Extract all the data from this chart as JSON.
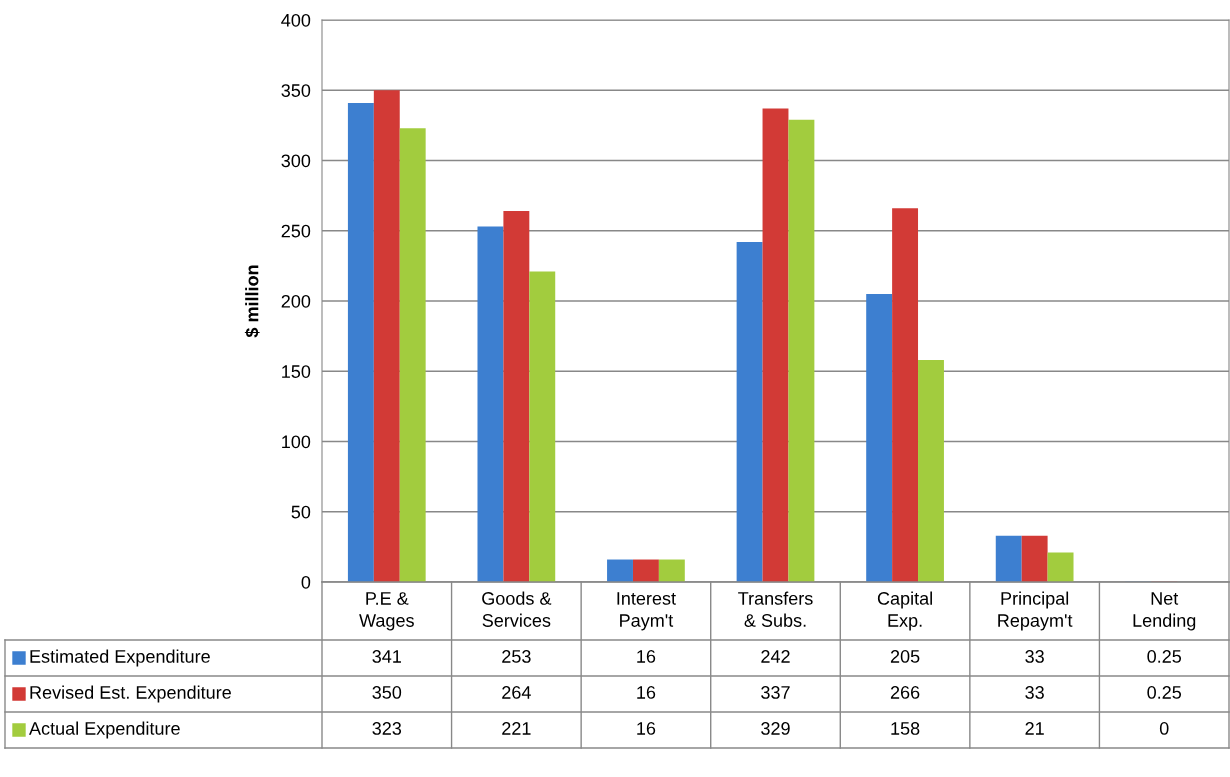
{
  "chart_data": {
    "type": "bar",
    "ylabel": "$ million",
    "categories": [
      "P.E &\nWages",
      "Goods &\nServices",
      "Interest\nPaym't",
      "Transfers\n& Subs.",
      "Capital\nExp.",
      "Principal\nRepaym't",
      "Net\nLending"
    ],
    "series": [
      {
        "name": "Estimated Expenditure",
        "color": "#3d7fd0",
        "values": [
          341,
          253,
          16,
          242,
          205,
          33,
          0.25
        ]
      },
      {
        "name": "Revised Est. Expenditure",
        "color": "#d23a36",
        "values": [
          350,
          264,
          16,
          337,
          266,
          33,
          0.25
        ]
      },
      {
        "name": "Actual Expenditure",
        "color": "#a2cc3e",
        "values": [
          323,
          221,
          16,
          329,
          158,
          21,
          0
        ]
      }
    ],
    "ylim": [
      0,
      400
    ],
    "yticks": [
      0,
      50,
      100,
      150,
      200,
      250,
      300,
      350,
      400
    ],
    "grid": "y",
    "legend": "bottom left",
    "data_labels": true,
    "tick_labels": "y"
  }
}
